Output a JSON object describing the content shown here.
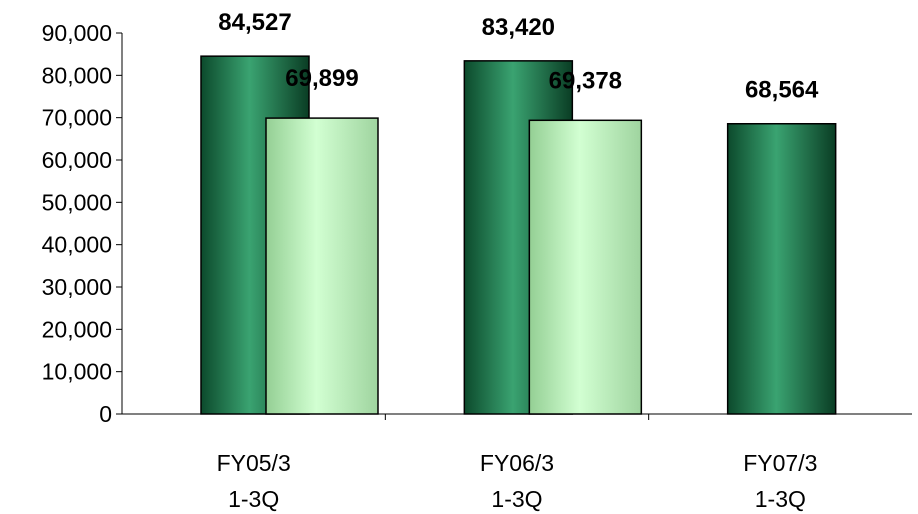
{
  "chart_data": {
    "type": "bar",
    "title": "",
    "xlabel": "",
    "ylabel": "",
    "ylim": [
      0,
      90000
    ],
    "yticks": [
      0,
      10000,
      20000,
      30000,
      40000,
      50000,
      60000,
      70000,
      80000,
      90000
    ],
    "ytick_labels": [
      "0",
      "10,000",
      "20,000",
      "30,000",
      "40,000",
      "50,000",
      "60,000",
      "70,000",
      "80,000",
      "90,000"
    ],
    "categories": [
      [
        "FY05/3",
        "1-3Q"
      ],
      [
        "FY06/3",
        "1-3Q"
      ],
      [
        "FY07/3",
        "1-3Q"
      ]
    ],
    "series": [
      {
        "values": [
          84527,
          83420,
          68564
        ],
        "labels": [
          "84,527",
          "83,420",
          "68,564"
        ],
        "color": "#2e8b57"
      },
      {
        "values": [
          69899,
          69378,
          null
        ],
        "labels": [
          "69,899",
          "69,378",
          ""
        ],
        "color": "#c8f5c8"
      }
    ],
    "grid": false,
    "legend": "none"
  }
}
